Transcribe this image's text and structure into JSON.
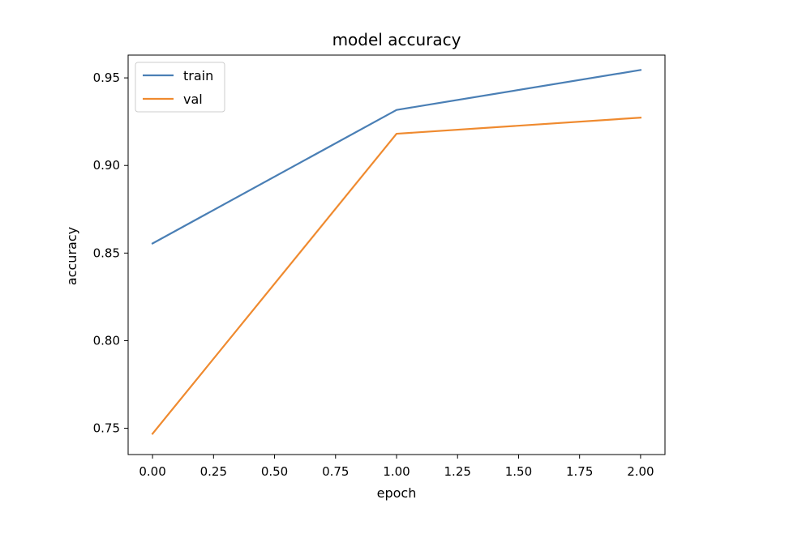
{
  "chart_data": {
    "type": "line",
    "title": "model accuracy",
    "xlabel": "epoch",
    "ylabel": "accuracy",
    "xlim": [
      -0.1,
      2.1
    ],
    "ylim": [
      0.735,
      0.963
    ],
    "x_ticks": [
      0.0,
      0.25,
      0.5,
      0.75,
      1.0,
      1.25,
      1.5,
      1.75,
      2.0
    ],
    "x_tick_labels": [
      "0.00",
      "0.25",
      "0.50",
      "0.75",
      "1.00",
      "1.25",
      "1.50",
      "1.75",
      "2.00"
    ],
    "y_ticks": [
      0.75,
      0.8,
      0.85,
      0.9,
      0.95
    ],
    "y_tick_labels": [
      "0.75",
      "0.80",
      "0.85",
      "0.90",
      "0.95"
    ],
    "grid": false,
    "legend_position": "top-left",
    "x": [
      0,
      1,
      2
    ],
    "series": [
      {
        "name": "train",
        "values": [
          0.8555,
          0.9317,
          0.9545
        ],
        "color": "#4a7fb5"
      },
      {
        "name": "val",
        "values": [
          0.7469,
          0.9181,
          0.9273
        ],
        "color": "#ef8a2f"
      }
    ]
  }
}
